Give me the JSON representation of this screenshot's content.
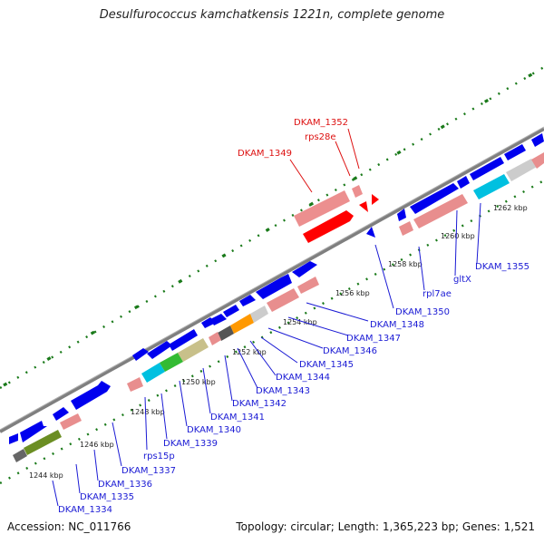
{
  "title": "Desulfurococcus kamchatkensis 1221n, complete genome",
  "footer": {
    "accession": "Accession: NC_011766",
    "summary": "Topology: circular; Length: 1,365,223 bp; Genes: 1,521"
  },
  "colors": {
    "backbone": "#7f7f7f",
    "gene_arrow": "#0000ee",
    "highlight": "#ff0000",
    "rna_box": "#e88e8e",
    "highlight_box": "#ec8f8f",
    "tick_green": "#1a7a1a",
    "label_blue": "#1a1ad4",
    "label_red": "#dd1111"
  },
  "kbp_ticks": [
    "1244 kbp",
    "1246 kbp",
    "1248 kbp",
    "1250 kbp",
    "1252 kbp",
    "1254 kbp",
    "1256 kbp",
    "1258 kbp",
    "1260 kbp",
    "1262 kbp"
  ],
  "highlight_labels": [
    "DKAM_1349",
    "rps28e",
    "DKAM_1352"
  ],
  "gene_labels": [
    "DKAM_1334",
    "DKAM_1335",
    "DKAM_1336",
    "DKAM_1337",
    "rps15p",
    "DKAM_1339",
    "DKAM_1340",
    "DKAM_1341",
    "DKAM_1342",
    "DKAM_1343",
    "DKAM_1344",
    "DKAM_1345",
    "DKAM_1346",
    "DKAM_1347",
    "DKAM_1348",
    "DKAM_1350",
    "rpl7ae",
    "gltX",
    "DKAM_1355"
  ]
}
